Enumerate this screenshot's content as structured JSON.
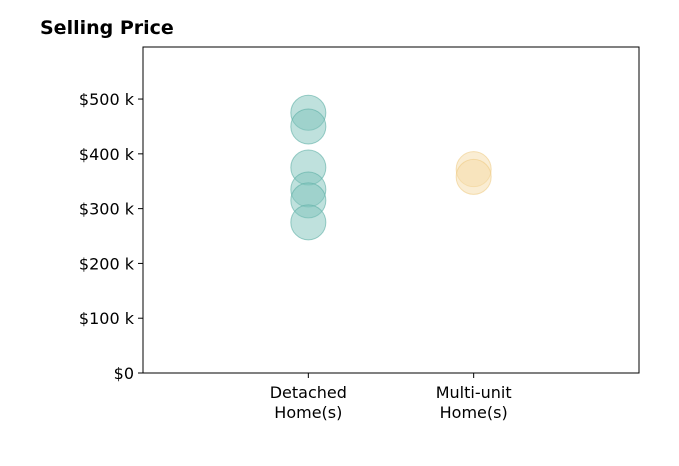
{
  "chart_data": {
    "type": "scatter",
    "title": "Selling Price",
    "xlabel": "",
    "ylabel": "",
    "categories": [
      "Detached\nHome(s)",
      "Multi-unit\nHome(s)"
    ],
    "y_tick_values": [
      0,
      100000,
      200000,
      300000,
      400000,
      500000
    ],
    "y_tick_labels": [
      "$0",
      "$100 k",
      "$200 k",
      "$300 k",
      "$400 k",
      "$500 k"
    ],
    "ylim": [
      0,
      595000
    ],
    "xlim": [
      -1,
      2
    ],
    "grid": false,
    "legend": "none",
    "series": [
      {
        "category_index": 0,
        "color": "#7fc4bb",
        "stroke": "#5aaea3",
        "values": [
          475000,
          450000,
          375000,
          335000,
          315000,
          275000
        ]
      },
      {
        "category_index": 1,
        "color": "#f5dba8",
        "stroke": "#eecb86",
        "values": [
          372000,
          358000
        ]
      }
    ]
  }
}
